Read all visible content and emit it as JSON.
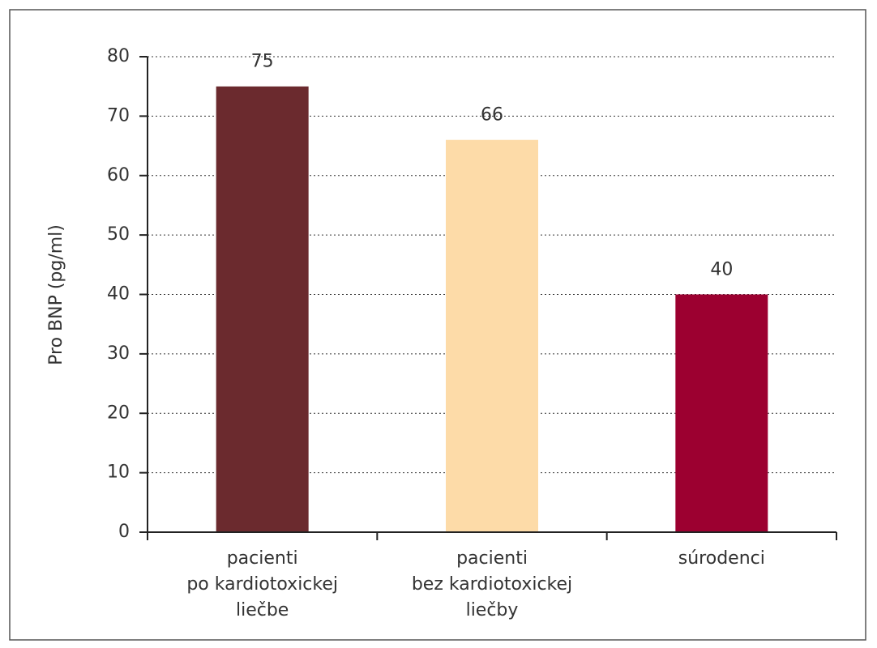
{
  "chart_data": {
    "type": "bar",
    "categories": [
      [
        "pacienti",
        "po kardiotoxickej",
        "liečbe"
      ],
      [
        "pacienti",
        "bez kardiotoxickej",
        "liečby"
      ],
      [
        "súrodenci"
      ]
    ],
    "values": [
      75,
      66,
      40
    ],
    "colors": [
      "#6b2a2e",
      "#fddba8",
      "#9c0030"
    ],
    "y_label": "Pro BNP (pg/ml)",
    "ylim": [
      0,
      80
    ],
    "yticks": [
      0,
      10,
      20,
      30,
      40,
      50,
      60,
      70,
      80
    ],
    "grid": true
  }
}
